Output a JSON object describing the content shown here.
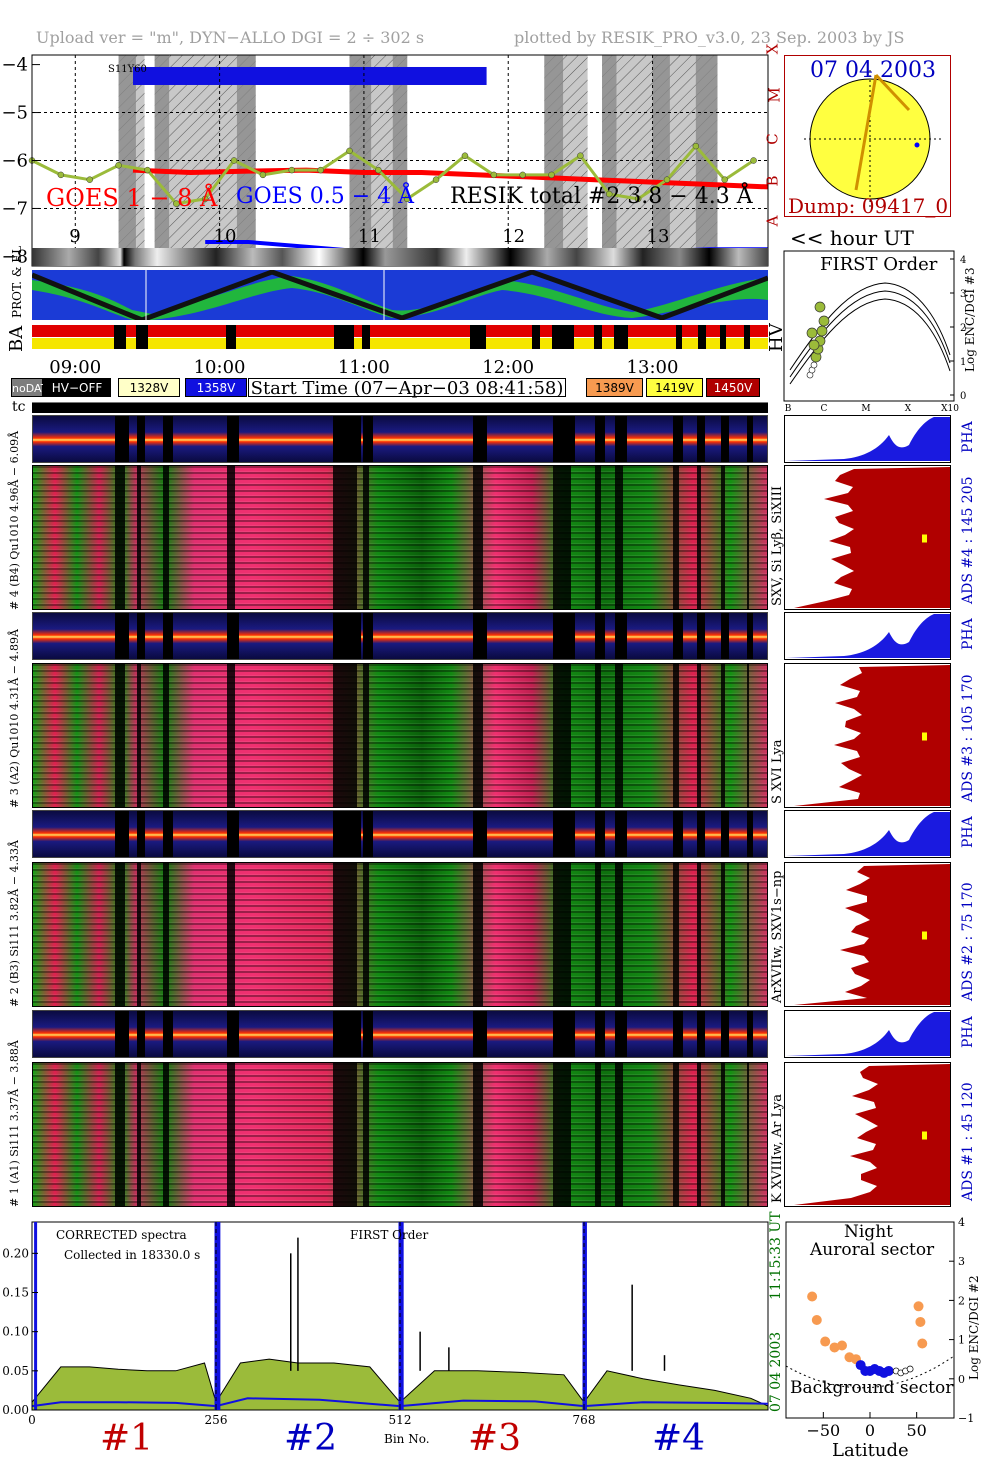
{
  "header": {
    "upload": "Upload ver = \"m\", DYN−ALLO DGI =   2 ÷ 302 s",
    "plotted": "plotted by RESIK_PRO_v3.0, 23 Sep. 2003 by JS"
  },
  "goes": {
    "y_ticks": [
      "−4",
      "−5",
      "−6",
      "−7",
      "−8"
    ],
    "class_labels": [
      "X",
      "M",
      "C",
      "B",
      "A"
    ],
    "saa_label": "S11Y60",
    "legend_goes18": "GOES 1 − 8 Å",
    "legend_goes05": "GOES 0.5 − 4 Å",
    "legend_resik": "RESIK total #2  3.8 − 4.3 Å",
    "colors": {
      "goes18": "#ff0000",
      "goes05": "#0000ff",
      "resik_day": "#9bbb3a",
      "resik_orange": "#f79a50"
    },
    "hour_ticks": [
      "9",
      "10",
      "11",
      "12",
      "13"
    ],
    "hour_label": "<< hour UT"
  },
  "sun": {
    "date": "07 04 2003",
    "dump": "Dump: 09417_0"
  },
  "tracks": {
    "prot_label": "PROT. & EL",
    "ba_label": "BA",
    "hv_label": "HV"
  },
  "time_labels": [
    "09:00",
    "10:00",
    "11:00",
    "12:00",
    "13:00"
  ],
  "legend": {
    "nodata": "noDATA",
    "hvoff": "HV−OFF",
    "v1328": "1328V",
    "v1358": "1358V",
    "start_time": "Start Time (07−Apr−03 08:41:58)",
    "v1389": "1389V",
    "v1419": "1419V",
    "v1450": "1450V"
  },
  "enc3": {
    "title": "FIRST Order",
    "ylabel": "Log ENC/DGI #3",
    "x_ticks": [
      "B",
      "C",
      "M",
      "X",
      "X10"
    ],
    "y_ticks": [
      "0",
      "1",
      "2",
      "3",
      "4"
    ]
  },
  "tc_label": "tc",
  "channels": [
    {
      "pha_label": "# 4 (B4) Qu1010 4.96Å − 6.09Å",
      "ads_name": "ADS #4 :  145 205",
      "lines": "SXV, Si Lyβ, SiXIII",
      "pha": "PHA"
    },
    {
      "pha_label": "# 3 (A2) Qu1010 4.31Å − 4.89Å",
      "ads_name": "ADS #3 :  105 170",
      "lines": "S XVI Lya",
      "pha": "PHA"
    },
    {
      "pha_label": "# 2 (B3) Si111 3.82Å − 4.33Å",
      "ads_name": "ADS #2 :  75 170",
      "lines": "ArXVIIw, SXV1s−np",
      "pha": "PHA"
    },
    {
      "pha_label": "# 1 (A1) Si111 3.37Å − 3.88Å",
      "ads_name": "ADS #1 :  45 120",
      "lines": "K XVIIIw, Ar Lya",
      "pha": "PHA"
    }
  ],
  "spectrum": {
    "title1": "CORRECTED spectra",
    "title2": "Collected in 18330.0 s",
    "first_order": "FIRST Order",
    "y_ticks": [
      "0.00",
      "0.05",
      "0.10",
      "0.15",
      "0.20"
    ],
    "x_ticks": [
      "0",
      "256",
      "512",
      "768"
    ],
    "x_label": "Bin No.",
    "date": "07 04 2003",
    "time": "11:15:33 UT",
    "channels": [
      {
        "label": "#1",
        "color": "#c00000"
      },
      {
        "label": "#2",
        "color": "#0000c0"
      },
      {
        "label": "#3",
        "color": "#c00000"
      },
      {
        "label": "#4",
        "color": "#0000c0"
      }
    ]
  },
  "latitude": {
    "night": "Night",
    "auroral": "Auroral sector",
    "background": "Background sector",
    "xlabel": "Latitude",
    "ylabel": "Log ENC/DGI #2",
    "x_ticks": [
      "−50",
      "0",
      "50"
    ],
    "y_ticks": [
      "−1",
      "0",
      "1",
      "2",
      "3",
      "4"
    ]
  },
  "chart_data": [
    {
      "type": "line",
      "title": "",
      "xlabel": "<< hour UT",
      "x_ticks": [
        9,
        10,
        11,
        12,
        13
      ],
      "xlim": [
        8.7,
        13.8
      ],
      "ylim": [
        -8.2,
        -3.8
      ],
      "series": [
        {
          "name": "GOES 1 − 8 Å",
          "x": [
            9.4,
            9.8,
            10.2,
            10.6,
            11.0,
            11.4,
            11.8,
            12.2,
            12.6,
            13.0,
            13.4,
            13.8
          ],
          "values": [
            -6.2,
            -6.25,
            -6.22,
            -6.2,
            -6.25,
            -6.25,
            -6.3,
            -6.35,
            -6.4,
            -6.45,
            -6.5,
            -6.55
          ]
        },
        {
          "name": "GOES 0.5 − 4 Å",
          "x": [
            9.9,
            10.2,
            10.6,
            11.0,
            11.4,
            11.8,
            12.2,
            12.6,
            13.0,
            13.4,
            13.8
          ],
          "values": [
            -7.7,
            -7.7,
            -7.8,
            -7.9,
            -8.0,
            -8.05,
            -8.05,
            -8.0,
            -7.9,
            -7.85,
            -7.85
          ]
        },
        {
          "name": "RESIK total #2  3.8 − 4.3 Å",
          "x": [
            8.7,
            8.9,
            9.1,
            9.3,
            9.5,
            9.7,
            9.9,
            10.1,
            10.3,
            10.5,
            10.7,
            10.9,
            11.1,
            11.3,
            11.5,
            11.7,
            11.9,
            12.1,
            12.3,
            12.5,
            12.7,
            12.9,
            13.1,
            13.3,
            13.5,
            13.7
          ],
          "values": [
            -6.0,
            -6.3,
            -6.4,
            -6.1,
            -6.2,
            -6.9,
            -6.8,
            -6.0,
            -6.3,
            -6.2,
            -6.2,
            -5.8,
            -6.2,
            -6.8,
            -6.4,
            -5.9,
            -6.3,
            -6.3,
            -6.3,
            -5.9,
            -6.7,
            -6.8,
            -6.4,
            -5.7,
            -6.4,
            -6.0
          ]
        }
      ]
    },
    {
      "type": "line",
      "title": "",
      "xlabel": "Bin No.",
      "x_ticks": [
        0,
        256,
        512,
        768
      ],
      "xlim": [
        0,
        1024
      ],
      "ylim": [
        0,
        0.24
      ],
      "series": [
        {
          "name": "",
          "x": [
            0,
            40,
            80,
            120,
            160,
            200,
            240,
            256,
            290,
            330,
            370,
            420,
            470,
            512,
            560,
            620,
            680,
            740,
            768,
            800,
            850,
            900,
            950,
            1000,
            1024
          ],
          "values": [
            0.01,
            0.055,
            0.055,
            0.052,
            0.05,
            0.05,
            0.06,
            0.01,
            0.06,
            0.065,
            0.06,
            0.06,
            0.055,
            0.01,
            0.05,
            0.05,
            0.048,
            0.045,
            0.01,
            0.05,
            0.04,
            0.032,
            0.025,
            0.015,
            0.005
          ]
        },
        {
          "name": "",
          "x": [
            0,
            40,
            120,
            200,
            256,
            300,
            400,
            512,
            600,
            700,
            768,
            850,
            950,
            1024
          ],
          "values": [
            0.005,
            0.01,
            0.01,
            0.009,
            0.005,
            0.015,
            0.013,
            0.005,
            0.012,
            0.011,
            0.005,
            0.01,
            0.009,
            0.008
          ]
        }
      ]
    },
    {
      "type": "scatter",
      "title": "",
      "xlabel": "Latitude",
      "ylabel": "Log ENC/DGI #2",
      "x_ticks": [
        -50,
        0,
        50
      ],
      "y_ticks": [
        -1,
        0,
        1,
        2,
        3,
        4
      ],
      "xlim": [
        -90,
        90
      ],
      "ylim": [
        -1,
        4
      ],
      "series": [
        {
          "name": "Auroral sector",
          "x": [
            -62,
            -57,
            -48,
            -38,
            -30,
            -22,
            -15,
            52,
            54,
            56
          ],
          "values": [
            2.1,
            1.5,
            0.95,
            0.8,
            0.85,
            0.55,
            0.5,
            1.85,
            1.45,
            0.9
          ]
        },
        {
          "name": "Background sector",
          "x": [
            -10,
            -5,
            0,
            5,
            10,
            15,
            20
          ],
          "values": [
            0.35,
            0.2,
            0.2,
            0.25,
            0.2,
            0.15,
            0.2
          ]
        },
        {
          "name": "",
          "x": [
            28,
            33,
            38,
            43
          ],
          "values": [
            0.2,
            0.15,
            0.2,
            0.25
          ]
        }
      ]
    }
  ]
}
